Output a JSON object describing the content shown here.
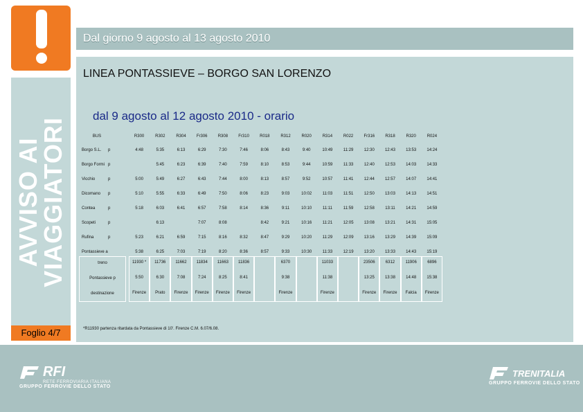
{
  "header": {
    "date_banner": "Dal giorno 9 agosto al 13 agosto 2010",
    "line_title": "LINEA PONTASSIEVE – BORGO SAN LORENZO",
    "sub_title": "dal 9 agosto al 12 agosto 2010 - orario"
  },
  "sidebar": {
    "icon": "exclamation-icon",
    "vertical_line1": "AVVISO AI",
    "vertical_line2": "VIAGGIATORI",
    "foglio": "Foglio 4/7"
  },
  "table": {
    "corner": "BUS",
    "trains": [
      "R300",
      "R302",
      "R304",
      "Fr306",
      "R308",
      "Fr310",
      "R018",
      "R312",
      "R020",
      "R314",
      "R022",
      "Fr316",
      "R318",
      "R320",
      "R024"
    ],
    "rows": [
      {
        "station": "Borgo S.L.",
        "mark": "p",
        "times": [
          "4:48",
          "5:35",
          "6:13",
          "6:29",
          "7:30",
          "7:46",
          "8:06",
          "8:43",
          "9:40",
          "10:49",
          "11:29",
          "12:30",
          "12:43",
          "13:53",
          "14:24"
        ]
      },
      {
        "station": "Borgo Formi",
        "mark": "p",
        "times": [
          "",
          "5:45",
          "6:23",
          "6:39",
          "7:40",
          "7:59",
          "8:10",
          "8:53",
          "9:44",
          "10:59",
          "11:33",
          "12:40",
          "12:53",
          "14:03",
          "14:33"
        ]
      },
      {
        "station": "Vicchio",
        "mark": "p",
        "times": [
          "5:00",
          "5:49",
          "6:27",
          "6:43",
          "7:44",
          "8:00",
          "8:13",
          "8:57",
          "9:52",
          "10:57",
          "11:41",
          "12:44",
          "12:57",
          "14:07",
          "14:41"
        ]
      },
      {
        "station": "Dicomano",
        "mark": "p",
        "times": [
          "5:10",
          "5:55",
          "6:33",
          "6:49",
          "7:50",
          "8:06",
          "8:23",
          "9:03",
          "10:02",
          "11:03",
          "11:51",
          "12:50",
          "13:03",
          "14:13",
          "14:51"
        ]
      },
      {
        "station": "Contea",
        "mark": "p",
        "times": [
          "5:18",
          "6:03",
          "6:41",
          "6:57",
          "7:58",
          "8:14",
          "8:36",
          "9:11",
          "10:10",
          "11:11",
          "11:59",
          "12:58",
          "13:11",
          "14:21",
          "14:59"
        ]
      },
      {
        "station": "Scopeti",
        "mark": "p",
        "times": [
          "",
          "6:13",
          "",
          "7:07",
          "8:08",
          "",
          "8:42",
          "9:21",
          "10:16",
          "11:21",
          "12:05",
          "13:08",
          "13:21",
          "14:31",
          "15:05"
        ]
      },
      {
        "station": "Rufina",
        "mark": "p",
        "times": [
          "5:23",
          "6:21",
          "6:59",
          "7:15",
          "8:16",
          "8:32",
          "8:47",
          "9:29",
          "10:20",
          "11:29",
          "12:09",
          "13:16",
          "13:29",
          "14:39",
          "15:09"
        ]
      },
      {
        "station": "Pontassieve a",
        "mark": "",
        "times": [
          "5:38",
          "6:25",
          "7:03",
          "7:19",
          "8:20",
          "8:36",
          "8:57",
          "9:33",
          "10:30",
          "11:33",
          "12:19",
          "13:20",
          "13:33",
          "14:43",
          "15:19"
        ]
      }
    ],
    "treno_label": "treno",
    "treno_values": [
      "11930 *",
      "11736",
      "11662",
      "11834",
      "11663",
      "11836",
      "",
      "6370",
      "",
      "11033",
      "",
      "23506",
      "6312",
      "11906",
      "6896"
    ],
    "pontassieve_p_label": "Pontassieve p",
    "pontassieve_p_values": [
      "5:50",
      "6:30",
      "7:08",
      "7:24",
      "8:25",
      "8:41",
      "",
      "9:38",
      "",
      "11:38",
      "",
      "13:25",
      "13:38",
      "14:48",
      "15:38"
    ],
    "destinazione_label": "destinazione",
    "destinazione_values": [
      "Firenze",
      "Prato",
      "Firenze",
      "Firenze",
      "Firenze",
      "Firenze",
      "",
      "Firenze",
      "",
      "Firenze",
      "",
      "Firenze",
      "Firenze",
      "Falcia",
      "Firenze"
    ],
    "footnote": "*R11930 partenza ritardata da Pontassieve di 10'. Firenze C.M. 6.07/6.08."
  },
  "footer": {
    "rfi_mark": "RFI",
    "rfi_small": "RETE FERROVIARIA ITALIANA",
    "rfi_group": "GRUPPO FERROVIE DELLO STATO",
    "trenitalia_name": "TRENITALIA",
    "trenitalia_group": "GRUPPO FERROVIE DELLO STATO"
  },
  "colors": {
    "accent": "#f07a22",
    "panel": "#c3d8d8",
    "banner": "#a9c1c1",
    "subtitle": "#1a2a88"
  }
}
